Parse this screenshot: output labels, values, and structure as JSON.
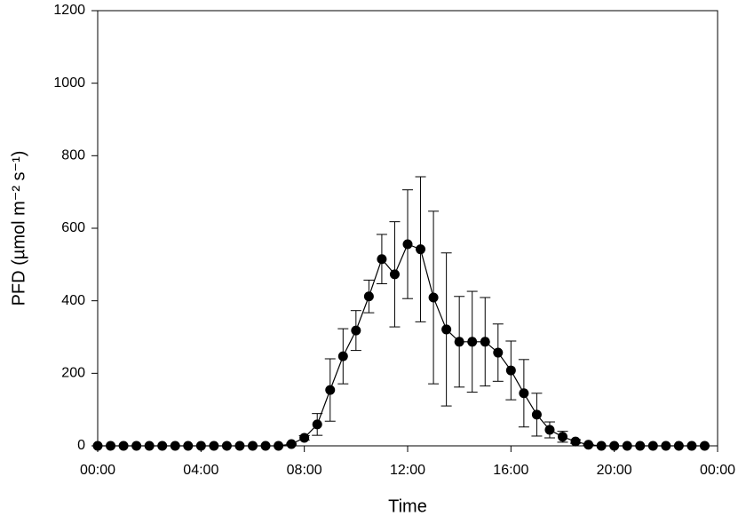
{
  "chart_data": {
    "type": "line",
    "x_label": "Time",
    "y_label": "PFD (µmol m⁻² s⁻¹)",
    "x": [
      0,
      0.5,
      1,
      1.5,
      2,
      2.5,
      3,
      3.5,
      4,
      4.5,
      5,
      5.5,
      6,
      6.5,
      7,
      7.5,
      8,
      8.5,
      9,
      9.5,
      10,
      10.5,
      11,
      11.5,
      12,
      12.5,
      13,
      13.5,
      14,
      14.5,
      15,
      15.5,
      16,
      16.5,
      17,
      17.5,
      18,
      18.5,
      19,
      19.5,
      20,
      20.5,
      21,
      21.5,
      22,
      22.5,
      23,
      23.5
    ],
    "series": [
      {
        "color": "#000000",
        "values": [
          0,
          0,
          0,
          0,
          0,
          0,
          0,
          0,
          0,
          0,
          0,
          0,
          0,
          0,
          0,
          5,
          22,
          59,
          154,
          247,
          318,
          412,
          515,
          473,
          556,
          542,
          409,
          321,
          287,
          287,
          287,
          257,
          208,
          145,
          86,
          44,
          25,
          12,
          3,
          0,
          0,
          0,
          0,
          0,
          0,
          0,
          0,
          0
        ],
        "errors": [
          0,
          0,
          0,
          0,
          0,
          0,
          0,
          0,
          0,
          0,
          0,
          0,
          0,
          0,
          0,
          2,
          6,
          30,
          86,
          76,
          55,
          45,
          68,
          145,
          150,
          200,
          238,
          211,
          125,
          139,
          122,
          79,
          81,
          93,
          59,
          22,
          15,
          5,
          1,
          0,
          0,
          0,
          0,
          0,
          0,
          0,
          0,
          0
        ]
      }
    ],
    "xlim": [
      0,
      24
    ],
    "xticks": [
      {
        "value": 0,
        "label": "00:00"
      },
      {
        "value": 4,
        "label": "04:00"
      },
      {
        "value": 8,
        "label": "08:00"
      },
      {
        "value": 12,
        "label": "12:00"
      },
      {
        "value": 16,
        "label": "16:00"
      },
      {
        "value": 20,
        "label": "20:00"
      },
      {
        "value": 24,
        "label": "00:00"
      }
    ],
    "ylim": [
      0,
      1200
    ],
    "yticks": [
      0,
      200,
      400,
      600,
      800,
      1000,
      1200
    ],
    "grid": false
  }
}
